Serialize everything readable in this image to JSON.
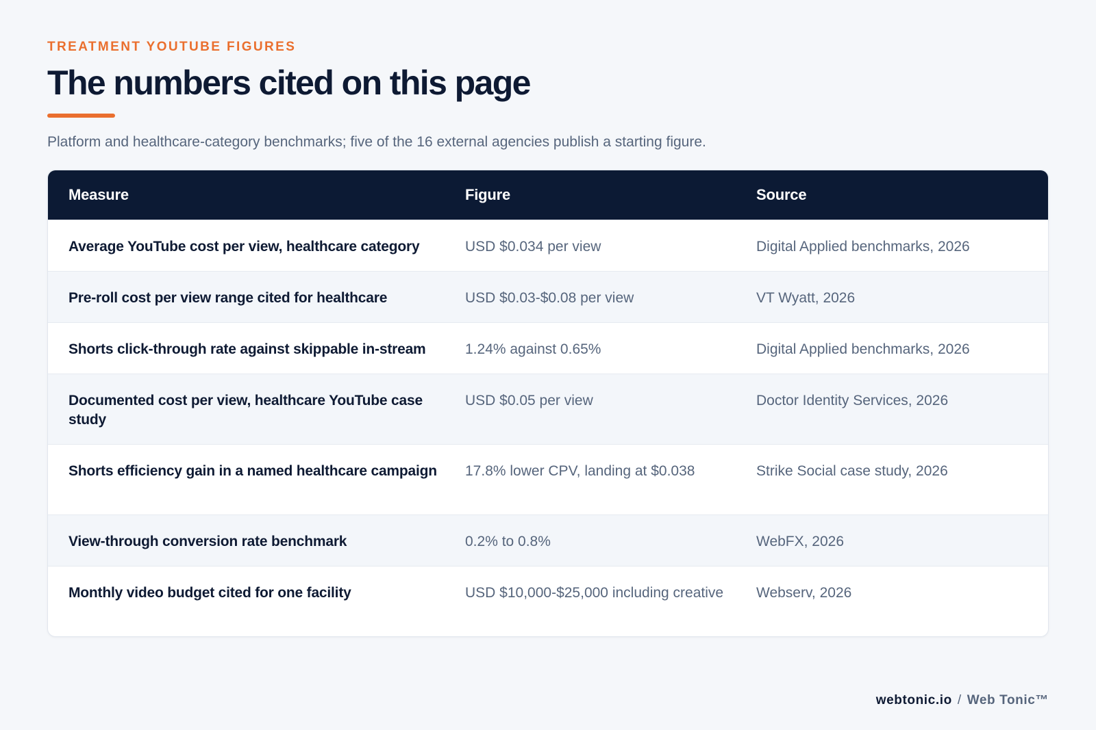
{
  "header": {
    "eyebrow": "TREATMENT YOUTUBE FIGURES",
    "title": "The numbers cited on this page",
    "subtitle": "Platform and healthcare-category benchmarks; five of the 16 external agencies publish a starting figure."
  },
  "colors": {
    "accent": "#ea6f2e",
    "header_bg": "#0c1a34",
    "text_dark": "#0e1a33",
    "text_muted": "#56657c",
    "row_alt": "#f3f6fa",
    "page_bg": "#f5f7fa"
  },
  "table": {
    "columns": [
      "Measure",
      "Figure",
      "Source"
    ],
    "rows": [
      {
        "measure": "Average YouTube cost per view, healthcare category",
        "figure": "USD $0.034 per view",
        "source": "Digital Applied benchmarks, 2026"
      },
      {
        "measure": "Pre-roll cost per view range cited for healthcare",
        "figure": "USD $0.03-$0.08 per view",
        "source": "VT Wyatt, 2026"
      },
      {
        "measure": "Shorts click-through rate against skippable in-stream",
        "figure": "1.24% against 0.65%",
        "source": "Digital Applied benchmarks, 2026"
      },
      {
        "measure": "Documented cost per view, healthcare YouTube case study",
        "figure": "USD $0.05 per view",
        "source": "Doctor Identity Services, 2026"
      },
      {
        "measure": "Shorts efficiency gain in a named healthcare campaign",
        "figure": "17.8% lower CPV, landing at $0.038",
        "source": "Strike Social case study, 2026"
      },
      {
        "measure": "View-through conversion rate benchmark",
        "figure": "0.2% to 0.8%",
        "source": "WebFX, 2026"
      },
      {
        "measure": "Monthly video budget cited for one facility",
        "figure": "USD $10,000-$25,000 including creative",
        "source": "Webserv, 2026"
      }
    ]
  },
  "footer": {
    "domain": "webtonic.io",
    "separator": "/",
    "brand": "Web Tonic™"
  }
}
